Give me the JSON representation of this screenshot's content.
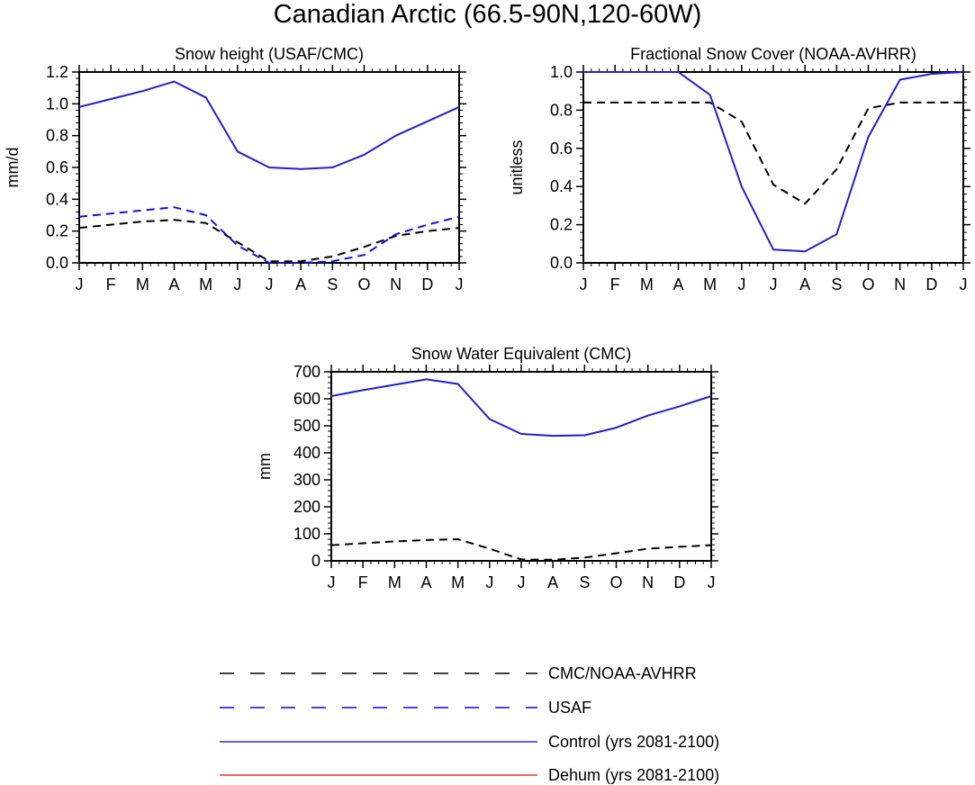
{
  "title": "Canadian Arctic (66.5-90N,120-60W)",
  "chart_data": [
    {
      "id": "snow-height",
      "type": "line",
      "title": "Snow height (USAF/CMC)",
      "xlabel": "",
      "ylabel": "mm/d",
      "categories": [
        "J",
        "F",
        "M",
        "A",
        "M",
        "J",
        "J",
        "A",
        "S",
        "O",
        "N",
        "D",
        "J"
      ],
      "ylim": [
        0,
        1.2
      ],
      "yticks": [
        0,
        0.2,
        0.4,
        0.6,
        0.8,
        1.0,
        1.2
      ],
      "ytick_labels": [
        "0.0",
        "0.2",
        "0.4",
        "0.6",
        "0.8",
        "1.0",
        "1.2"
      ],
      "series": [
        {
          "name": "CMC/NOAA-AVHRR",
          "values": [
            0.22,
            0.24,
            0.26,
            0.27,
            0.25,
            0.13,
            0.01,
            0.01,
            0.04,
            0.1,
            0.17,
            0.2,
            0.22
          ]
        },
        {
          "name": "USAF",
          "values": [
            0.29,
            0.31,
            0.33,
            0.35,
            0.3,
            0.11,
            0.0,
            0.0,
            0.01,
            0.05,
            0.18,
            0.24,
            0.29
          ]
        },
        {
          "name": "Control (yrs 2081-2100)",
          "values": [
            0.98,
            1.03,
            1.08,
            1.14,
            1.04,
            0.7,
            0.6,
            0.59,
            0.6,
            0.68,
            0.8,
            0.89,
            0.98
          ]
        }
      ]
    },
    {
      "id": "fractional-snow-cover",
      "type": "line",
      "title": "Fractional Snow Cover (NOAA-AVHRR)",
      "xlabel": "",
      "ylabel": "unitless",
      "categories": [
        "J",
        "F",
        "M",
        "A",
        "M",
        "J",
        "J",
        "A",
        "S",
        "O",
        "N",
        "D",
        "J"
      ],
      "ylim": [
        0,
        1.0
      ],
      "yticks": [
        0,
        0.2,
        0.4,
        0.6,
        0.8,
        1.0
      ],
      "ytick_labels": [
        "0.0",
        "0.2",
        "0.4",
        "0.6",
        "0.8",
        "1.0"
      ],
      "series": [
        {
          "name": "CMC/NOAA-AVHRR",
          "values": [
            0.84,
            0.84,
            0.84,
            0.84,
            0.84,
            0.74,
            0.41,
            0.31,
            0.49,
            0.81,
            0.84,
            0.84,
            0.84
          ]
        },
        {
          "name": "Control (yrs 2081-2100)",
          "values": [
            1.0,
            1.0,
            1.0,
            1.0,
            0.88,
            0.4,
            0.07,
            0.06,
            0.15,
            0.66,
            0.96,
            0.99,
            1.0
          ]
        }
      ]
    },
    {
      "id": "snow-water-equivalent",
      "type": "line",
      "title": "Snow Water Equivalent (CMC)",
      "xlabel": "",
      "ylabel": "mm",
      "categories": [
        "J",
        "F",
        "M",
        "A",
        "M",
        "J",
        "J",
        "A",
        "S",
        "O",
        "N",
        "D",
        "J"
      ],
      "ylim": [
        0,
        700
      ],
      "yticks": [
        0,
        100,
        200,
        300,
        400,
        500,
        600,
        700
      ],
      "ytick_labels": [
        "0",
        "100",
        "200",
        "300",
        "400",
        "500",
        "600",
        "700"
      ],
      "series": [
        {
          "name": "CMC/NOAA-AVHRR",
          "values": [
            58,
            65,
            72,
            77,
            80,
            45,
            5,
            4,
            12,
            28,
            45,
            52,
            58
          ]
        },
        {
          "name": "Control (yrs 2081-2100)",
          "values": [
            610,
            632,
            652,
            672,
            655,
            525,
            470,
            463,
            465,
            493,
            538,
            572,
            610
          ]
        }
      ]
    }
  ],
  "legend": [
    {
      "label": "CMC/NOAA-AVHRR",
      "color": "#000000",
      "style": "dashed"
    },
    {
      "label": "USAF",
      "color": "#0000ff",
      "style": "dashed"
    },
    {
      "label": "Control (yrs 2081-2100)",
      "color": "#0000ff",
      "style": "solid"
    },
    {
      "label": "Dehum (yrs 2081-2100)",
      "color": "#ff0000",
      "style": "solid"
    }
  ],
  "series_styles": {
    "CMC/NOAA-AVHRR": {
      "color": "#000000",
      "dash": "dashed"
    },
    "USAF": {
      "color": "#1010e0",
      "dash": "dashed"
    },
    "Control (yrs 2081-2100)": {
      "color": "#2020d0",
      "dash": "solid"
    }
  }
}
